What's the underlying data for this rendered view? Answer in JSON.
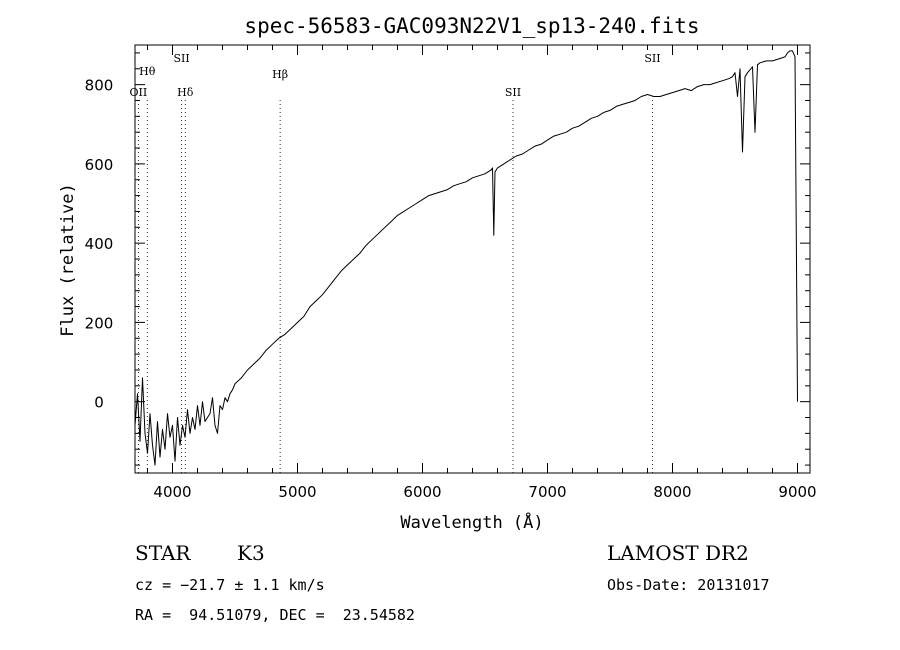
{
  "chart_data": {
    "type": "line",
    "title": "spec-56583-GAC093N22V1_sp13-240.fits",
    "xlabel": "Wavelength (Å)",
    "ylabel": "Flux (relative)",
    "xlim": [
      3700,
      9100
    ],
    "ylim": [
      -180,
      900
    ],
    "x_ticks": [
      4000,
      5000,
      6000,
      7000,
      8000,
      9000
    ],
    "y_ticks": [
      0,
      200,
      400,
      600,
      800
    ],
    "grid": false,
    "series": [
      {
        "color": "#000000",
        "x": [
          3700,
          3720,
          3740,
          3760,
          3780,
          3800,
          3820,
          3840,
          3860,
          3880,
          3900,
          3920,
          3940,
          3960,
          3980,
          4000,
          4020,
          4040,
          4060,
          4080,
          4100,
          4120,
          4140,
          4160,
          4180,
          4200,
          4220,
          4240,
          4260,
          4280,
          4300,
          4320,
          4340,
          4360,
          4380,
          4400,
          4420,
          4440,
          4460,
          4480,
          4500,
          4550,
          4600,
          4650,
          4700,
          4750,
          4800,
          4850,
          4900,
          4950,
          5000,
          5050,
          5100,
          5150,
          5200,
          5250,
          5300,
          5350,
          5400,
          5450,
          5500,
          5550,
          5600,
          5650,
          5700,
          5750,
          5800,
          5850,
          5900,
          5950,
          6000,
          6050,
          6100,
          6150,
          6200,
          6250,
          6300,
          6350,
          6400,
          6450,
          6500,
          6550,
          6560,
          6570,
          6580,
          6600,
          6650,
          6700,
          6750,
          6800,
          6850,
          6900,
          6950,
          7000,
          7050,
          7100,
          7150,
          7200,
          7250,
          7300,
          7350,
          7400,
          7450,
          7500,
          7550,
          7600,
          7650,
          7700,
          7750,
          7800,
          7850,
          7900,
          7950,
          8000,
          8050,
          8100,
          8150,
          8200,
          8250,
          8300,
          8350,
          8400,
          8450,
          8480,
          8500,
          8520,
          8540,
          8560,
          8580,
          8600,
          8640,
          8660,
          8680,
          8700,
          8750,
          8800,
          8850,
          8900,
          8920,
          8940,
          8960,
          8980,
          9000
        ],
        "values": [
          -60,
          20,
          -100,
          60,
          -80,
          -130,
          -30,
          -110,
          -160,
          -50,
          -140,
          -70,
          -120,
          -30,
          -90,
          -60,
          -150,
          -40,
          -110,
          -60,
          -90,
          -20,
          -80,
          -40,
          -70,
          -10,
          -60,
          0,
          -50,
          -40,
          -30,
          10,
          -60,
          -80,
          -10,
          -20,
          10,
          0,
          20,
          30,
          45,
          60,
          80,
          95,
          110,
          130,
          145,
          160,
          170,
          185,
          200,
          215,
          240,
          255,
          270,
          290,
          310,
          330,
          345,
          360,
          375,
          395,
          410,
          425,
          440,
          455,
          470,
          480,
          490,
          500,
          510,
          520,
          525,
          530,
          535,
          545,
          550,
          555,
          565,
          570,
          575,
          585,
          590,
          420,
          580,
          590,
          600,
          610,
          620,
          625,
          635,
          645,
          650,
          660,
          670,
          675,
          680,
          690,
          695,
          705,
          715,
          720,
          730,
          735,
          745,
          750,
          755,
          760,
          770,
          775,
          770,
          770,
          775,
          780,
          785,
          790,
          785,
          795,
          800,
          800,
          805,
          810,
          815,
          820,
          830,
          770,
          840,
          630,
          820,
          830,
          845,
          680,
          850,
          855,
          860,
          860,
          865,
          870,
          880,
          885,
          885,
          870,
          0
        ]
      }
    ],
    "annotations": [
      {
        "label": "Hθ",
        "x": 3798
      },
      {
        "label": "OII",
        "x": 3727
      },
      {
        "label": "SII",
        "x": 4073
      },
      {
        "label": "Hδ",
        "x": 4102
      },
      {
        "label": "Hβ",
        "x": 4861
      },
      {
        "label": "SII",
        "x": 6724
      },
      {
        "label": "SII",
        "x": 7840
      }
    ]
  },
  "footer": {
    "object_class": "STAR",
    "subclass": "K3",
    "survey": "LAMOST DR2",
    "cz": "cz = −21.7 ± 1.1 km/s",
    "obs_date": "Obs-Date: 20131017",
    "coords": "RA =  94.51079, DEC =  23.54582"
  }
}
